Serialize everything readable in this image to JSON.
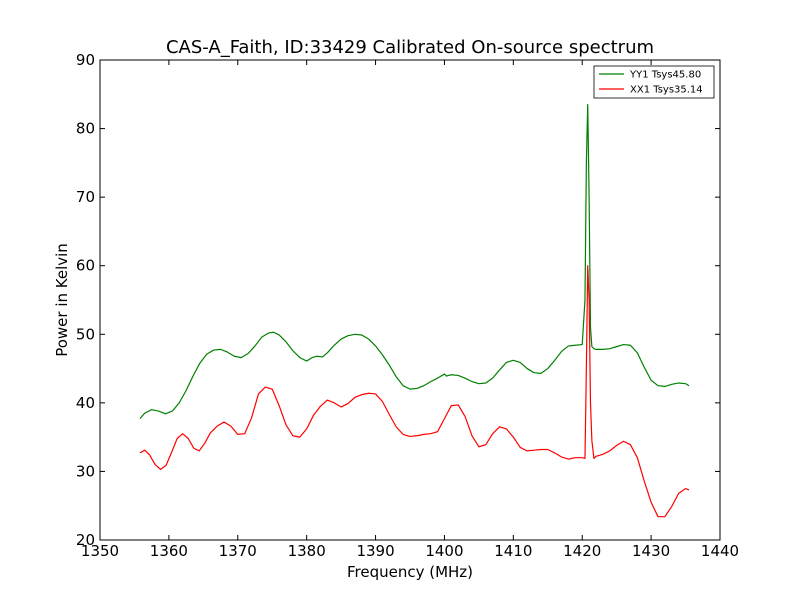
{
  "chart_data": {
    "type": "line",
    "title": "CAS-A_Faith, ID:33429 Calibrated On-source spectrum",
    "xlabel": "Frequency (MHz)",
    "ylabel": "Power in Kelvin",
    "xlim": [
      1350,
      1440
    ],
    "ylim": [
      20,
      90
    ],
    "xticks": [
      1350,
      1360,
      1370,
      1380,
      1390,
      1400,
      1410,
      1420,
      1430,
      1440
    ],
    "yticks": [
      20,
      30,
      40,
      50,
      60,
      70,
      80,
      90
    ],
    "grid": false,
    "legend_position": "top-right",
    "series": [
      {
        "name": "YY1 Tsys45.80",
        "color": "#008000",
        "x": [
          1355.8,
          1356.5,
          1357.5,
          1358.5,
          1359.5,
          1360.5,
          1361.5,
          1362.5,
          1363.5,
          1364.5,
          1365.5,
          1366.5,
          1367.5,
          1368.5,
          1369.5,
          1370.5,
          1371.5,
          1372.5,
          1373.5,
          1374.5,
          1375.2,
          1376,
          1377,
          1378,
          1379,
          1380,
          1380.8,
          1381.5,
          1382.3,
          1383,
          1384,
          1385,
          1386,
          1387,
          1388,
          1389,
          1390,
          1391,
          1392,
          1393,
          1394,
          1395,
          1396,
          1397,
          1398,
          1399,
          1400,
          1400.3,
          1400.6,
          1401,
          1402,
          1403,
          1404,
          1405,
          1406,
          1407,
          1408,
          1409,
          1410,
          1411,
          1412,
          1413,
          1414,
          1415,
          1416,
          1417,
          1418,
          1419,
          1420,
          1420.4,
          1420.6,
          1420.8,
          1421,
          1421.2,
          1421.4,
          1421.7,
          1422,
          1423,
          1424,
          1425,
          1426,
          1427,
          1428,
          1429,
          1430,
          1431,
          1432,
          1433,
          1434,
          1435,
          1435.5
        ],
        "values": [
          37.7,
          38.5,
          39.0,
          38.8,
          38.4,
          38.8,
          40.0,
          41.8,
          43.9,
          45.8,
          47.1,
          47.7,
          47.8,
          47.4,
          46.8,
          46.6,
          47.2,
          48.3,
          49.6,
          50.2,
          50.3,
          49.9,
          48.9,
          47.6,
          46.6,
          46.1,
          46.6,
          46.8,
          46.7,
          47.3,
          48.4,
          49.3,
          49.8,
          50.0,
          49.9,
          49.3,
          48.3,
          47.0,
          45.5,
          43.8,
          42.5,
          42.0,
          42.1,
          42.5,
          43.1,
          43.6,
          44.2,
          43.9,
          44.0,
          44.1,
          44.0,
          43.6,
          43.1,
          42.8,
          42.9,
          43.6,
          44.8,
          45.9,
          46.2,
          45.9,
          45.0,
          44.4,
          44.3,
          45.0,
          46.2,
          47.5,
          48.3,
          48.4,
          48.5,
          55.0,
          75.0,
          83.5,
          70.0,
          51.0,
          48.2,
          47.9,
          47.8,
          47.8,
          47.9,
          48.2,
          48.5,
          48.4,
          47.3,
          45.2,
          43.3,
          42.5,
          42.4,
          42.7,
          42.9,
          42.8,
          42.5
        ]
      },
      {
        "name": "XX1 Tsys35.14",
        "color": "#ff0000",
        "x": [
          1355.8,
          1356.5,
          1357.2,
          1358,
          1358.8,
          1359.6,
          1360.4,
          1361.2,
          1362,
          1362.8,
          1363.6,
          1364.4,
          1365.2,
          1366,
          1367,
          1368,
          1369,
          1370,
          1371,
          1372,
          1373,
          1374,
          1375,
          1376,
          1377,
          1378,
          1379,
          1380,
          1381,
          1382,
          1383,
          1384,
          1385,
          1386,
          1387,
          1388,
          1389,
          1390,
          1391,
          1392,
          1393,
          1394,
          1395,
          1396,
          1397,
          1398,
          1399,
          1400,
          1401,
          1402,
          1403,
          1404,
          1405,
          1406,
          1407,
          1408,
          1409,
          1410,
          1411,
          1412,
          1413,
          1414,
          1415,
          1416,
          1417,
          1418,
          1419,
          1420,
          1420.4,
          1420.6,
          1420.8,
          1421,
          1421.2,
          1421.4,
          1421.7,
          1422,
          1423,
          1424,
          1425,
          1426,
          1427,
          1428,
          1429,
          1430,
          1431,
          1432,
          1433,
          1434,
          1435,
          1435.5
        ],
        "values": [
          32.7,
          33.1,
          32.4,
          31.0,
          30.3,
          30.9,
          32.8,
          34.8,
          35.5,
          34.8,
          33.4,
          33.0,
          34.1,
          35.6,
          36.6,
          37.2,
          36.6,
          35.4,
          35.5,
          37.8,
          41.3,
          42.3,
          42.0,
          39.6,
          36.8,
          35.2,
          35.0,
          36.2,
          38.2,
          39.5,
          40.4,
          40.0,
          39.4,
          39.9,
          40.8,
          41.2,
          41.4,
          41.3,
          40.2,
          38.3,
          36.5,
          35.4,
          35.1,
          35.2,
          35.4,
          35.5,
          35.8,
          37.7,
          39.6,
          39.7,
          38.0,
          35.2,
          33.6,
          33.9,
          35.5,
          36.5,
          36.2,
          35.0,
          33.5,
          33.0,
          33.1,
          33.2,
          33.2,
          32.7,
          32.1,
          31.8,
          32.0,
          32.0,
          31.9,
          45.0,
          60.0,
          55.0,
          40.0,
          34.5,
          31.9,
          32.2,
          32.5,
          33.0,
          33.8,
          34.4,
          33.9,
          32.0,
          28.6,
          25.5,
          23.4,
          23.4,
          24.9,
          26.8,
          27.5,
          27.3
        ]
      }
    ]
  }
}
